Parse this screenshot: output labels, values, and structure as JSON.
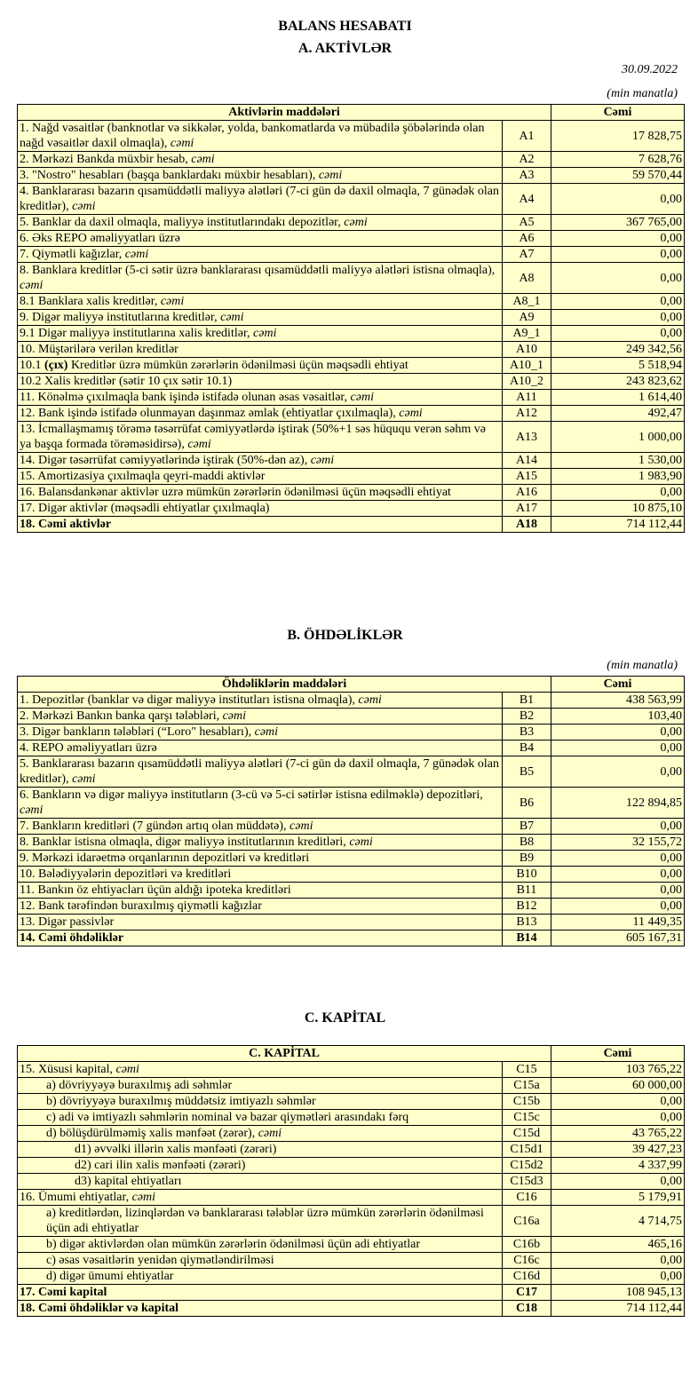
{
  "title": "BALANS HESABATI",
  "colors": {
    "table_background": "#ffffcc",
    "border": "#000000"
  },
  "section_a": {
    "heading": "A. AKTİVLƏR",
    "date": "30.09.2022",
    "unit": "(min manatla)",
    "header_label": "Aktivlərin   maddələri",
    "header_value": "Cəmi",
    "rows": [
      {
        "pre": "1. Nağd vəsaitlər (banknotlar və sikkələr, yolda, bankomatlarda və mübadilə şöbələrində olan nağd vəsaitlər daxil olmaqla), ",
        "it": "cəmi",
        "code": "A1",
        "value": "17 828,75"
      },
      {
        "pre": "2. Mərkəzi Bankda müxbir hesab, ",
        "it": "cəmi",
        "code": "A2",
        "value": "7 628,76"
      },
      {
        "pre": "3. \"Nostro\" hesabları (başqa banklardakı müxbir hesabları), ",
        "it": "cəmi",
        "code": "A3",
        "value": "59 570,44"
      },
      {
        "pre": "4. Banklararası bazarın qısamüddətli maliyyə alətləri (7-ci gün də daxil olmaqla, 7 günədək olan kreditlər), ",
        "it": "cəmi",
        "code": "A4",
        "value": "0,00"
      },
      {
        "pre": "5. Banklar da daxil olmaqla, maliyyə institutlarındakı depozitlər, ",
        "it": "cəmi",
        "code": "A5",
        "value": "367 765,00"
      },
      {
        "pre": "6. Əks REPO əməliyyatları üzrə",
        "code": "A6",
        "value": "0,00"
      },
      {
        "pre": "7. Qiymətli kağızlar, ",
        "it": "cəmi",
        "code": "A7",
        "value": "0,00"
      },
      {
        "pre": "8. Banklara kreditlər (5-ci sətir üzrə banklararası qısamüddətli maliyyə alətləri istisna olmaqla), ",
        "it": "cəmi",
        "code": "A8",
        "value": "0,00"
      },
      {
        "pre": "8.1 Banklara xalis kreditlər, ",
        "it": "cəmi",
        "code": "A8_1",
        "value": "0,00"
      },
      {
        "pre": "9. Digər maliyyə institutlarına kreditlər, ",
        "it": "cəmi",
        "code": "A9",
        "value": "0,00"
      },
      {
        "pre": "9.1 Digər maliyyə institutlarına xalis kreditlər, ",
        "it": "cəmi",
        "code": "A9_1",
        "value": "0,00"
      },
      {
        "pre": "10. Müştərilərə verilən kreditlər",
        "code": "A10",
        "value": "249 342,56"
      },
      {
        "pre": "10.1 ",
        "b": "(çıx)",
        "post": " Kreditlər üzrə mümkün zərərlərin ödənilməsi üçün məqsədli ehtiyat",
        "code": "A10_1",
        "value": "5 518,94"
      },
      {
        "pre": "10.2 Xalis kreditlər (sətir 10 çıx sətir 10.1)",
        "code": "A10_2",
        "value": "243 823,62"
      },
      {
        "pre": "11. Könəlmə çıxılmaqla bank işində istifadə olunan əsas vəsaitlər, ",
        "it": "cəmi",
        "code": "A11",
        "value": "1 614,40"
      },
      {
        "pre": "12. Bank işində istifadə olunmayan daşınmaz əmlak (ehtiyatlar çıxılmaqla), ",
        "it": "cəmi",
        "code": "A12",
        "value": "492,47"
      },
      {
        "pre": "13. İcmallaşmamış törəmə təsərrüfat cəmiyyətlərdə iştirak (50%+1 səs hüququ verən səhm və ya başqa formada törəməsidirsə), ",
        "it": "cəmi",
        "code": "A13",
        "value": "1 000,00"
      },
      {
        "pre": "14. Digər təsərrüfat cəmiyyətlərində iştirak (50%-dən az), ",
        "it": "cəmi",
        "code": "A14",
        "value": "1 530,00"
      },
      {
        "pre": "15. Amortizasiya çıxılmaqla qeyri-maddi aktivlər",
        "code": "A15",
        "value": "1 983,90"
      },
      {
        "pre": "16. Balansdankənar aktivlər uzrə mümkün zərərlərin ödənilməsi üçün məqsədli ehtiyat",
        "code": "A16",
        "value": "0,00"
      },
      {
        "pre": "17. Digər aktivlər (məqsədli ehtiyatlar çıxılmaqla)",
        "code": "A17",
        "value": "10 875,10"
      },
      {
        "pre": "18. Cəmi aktivlər",
        "code": "A18",
        "value": "714 112,44",
        "bold": true
      }
    ]
  },
  "section_b": {
    "heading": "B. ÖHDƏLİKLƏR",
    "unit": "(min manatla)",
    "header_label": "Öhdəliklərin maddələri",
    "header_value": "Cəmi",
    "rows": [
      {
        "pre": "1. Depozitlər (banklar və digər maliyyə institutları istisna olmaqla), ",
        "it": "cəmi",
        "code": "B1",
        "value": "438 563,99"
      },
      {
        "pre": "2. Mərkəzi Bankın banka qarşı tələbləri, ",
        "it": "cəmi",
        "code": "B2",
        "value": "103,40"
      },
      {
        "pre": "3. Digər bankların tələbləri (“Loro\" hesabları), ",
        "it": "cəmi",
        "code": "B3",
        "value": "0,00"
      },
      {
        "pre": "4. REPO əməliyyatları  üzrə",
        "code": "B4",
        "value": "0,00"
      },
      {
        "pre": "5. Banklararası bazarın qısamüddətli maliyyə alətləri (7-ci gün də daxil olmaqla, 7 günədək olan kreditlər), ",
        "it": "cəmi",
        "code": "B5",
        "value": "0,00"
      },
      {
        "pre": "6. Bankların və digər maliyyə institutların (3-cü və 5-ci sətirlər istisna edilməklə) depozitləri, ",
        "it": "cəmi",
        "code": "B6",
        "value": "122 894,85"
      },
      {
        "pre": "7. Bankların kreditləri (7 gündən artıq olan müddətə), ",
        "it": "cəmi",
        "code": "B7",
        "value": "0,00"
      },
      {
        "pre": "8. Banklar istisna olmaqla, digər maliyyə institutlarının kreditləri, ",
        "it": "cəmi",
        "code": "B8",
        "value": "32 155,72"
      },
      {
        "pre": "9. Mərkəzi idarəetmə orqanlarının depozitləri və kreditləri",
        "code": "B9",
        "value": "0,00"
      },
      {
        "pre": "10. Bələdiyyələrin depozitləri və kreditləri",
        "code": "B10",
        "value": "0,00"
      },
      {
        "pre": "11. Bankın öz ehtiyacları üçün aldığı ipoteka kreditləri",
        "code": "B11",
        "value": "0,00"
      },
      {
        "pre": "12. Bank tərəfindən buraxılmış qiymətli kağızlar",
        "code": "B12",
        "value": "0,00"
      },
      {
        "pre": "13. Digər passivlər",
        "code": "B13",
        "value": "11 449,35"
      },
      {
        "pre": "14. Cəmi öhdəliklər",
        "code": "B14",
        "value": "605 167,31",
        "bold": true
      }
    ]
  },
  "section_c": {
    "heading": "C. KAPİTAL",
    "header_label": "C. KAPİTAL",
    "header_value": "Cəmi",
    "rows": [
      {
        "pre": "15. Xüsusi kapital, ",
        "it": "cəmi",
        "code": "C15",
        "value": "103 765,22"
      },
      {
        "pre": "a) dövriyyəyə buraxılmış adi səhmlər",
        "code": "C15a",
        "value": "60 000,00",
        "indent": 1
      },
      {
        "pre": "b) dövriyyəyə buraxılmış müddətsiz imtiyazlı səhmlər",
        "code": "C15b",
        "value": "0,00",
        "indent": 1
      },
      {
        "pre": "c) adi və imtiyazlı səhmlərin nominal və bazar qiymətləri arasındakı fərq",
        "code": "C15c",
        "value": "0,00",
        "indent": 1
      },
      {
        "pre": "d) bölüşdürülməmiş xalis mənfəət (zərər), ",
        "it": "cəmi",
        "code": "C15d",
        "value": "43 765,22",
        "indent": 1
      },
      {
        "pre": "d1) əvvəlki illərin xalis mənfəəti (zərəri)",
        "code": "C15d1",
        "value": "39 427,23",
        "indent": 2
      },
      {
        "pre": "d2) cari ilin xalis mənfəəti (zərəri)",
        "code": "C15d2",
        "value": "4 337,99",
        "indent": 2
      },
      {
        "pre": "d3) kapital ehtiyatları",
        "code": "C15d3",
        "value": "0,00",
        "indent": 2
      },
      {
        "pre": "16. Ümumi ehtiyatlar, ",
        "it": "cəmi",
        "code": "C16",
        "value": "5 179,91"
      },
      {
        "pre": "a) kreditlərdən, lizinqlərdən və banklararası  tələblər üzrə mümkün zərərlərin ödənilməsi üçün adi ehtiyatlar",
        "code": "C16a",
        "value": "4 714,75",
        "indent": 1
      },
      {
        "pre": "b) digər aktivlərdən olan mümkün zərərlərin ödənilməsi üçün adi ehtiyatlar",
        "code": "C16b",
        "value": "465,16",
        "indent": 1
      },
      {
        "pre": "c) əsas vəsaitlərin yenidən qiymətləndirilməsi",
        "code": "C16c",
        "value": "0,00",
        "indent": 1
      },
      {
        "pre": "d) digər ümumi ehtiyatlar",
        "code": "C16d",
        "value": "0,00",
        "indent": 1
      },
      {
        "pre": "17. Cəmi kapital",
        "code": "C17",
        "value": "108 945,13",
        "bold": true
      },
      {
        "pre": "18. Cəmi öhdəliklər və kapital",
        "code": "C18",
        "value": "714 112,44",
        "bold": true
      }
    ]
  }
}
